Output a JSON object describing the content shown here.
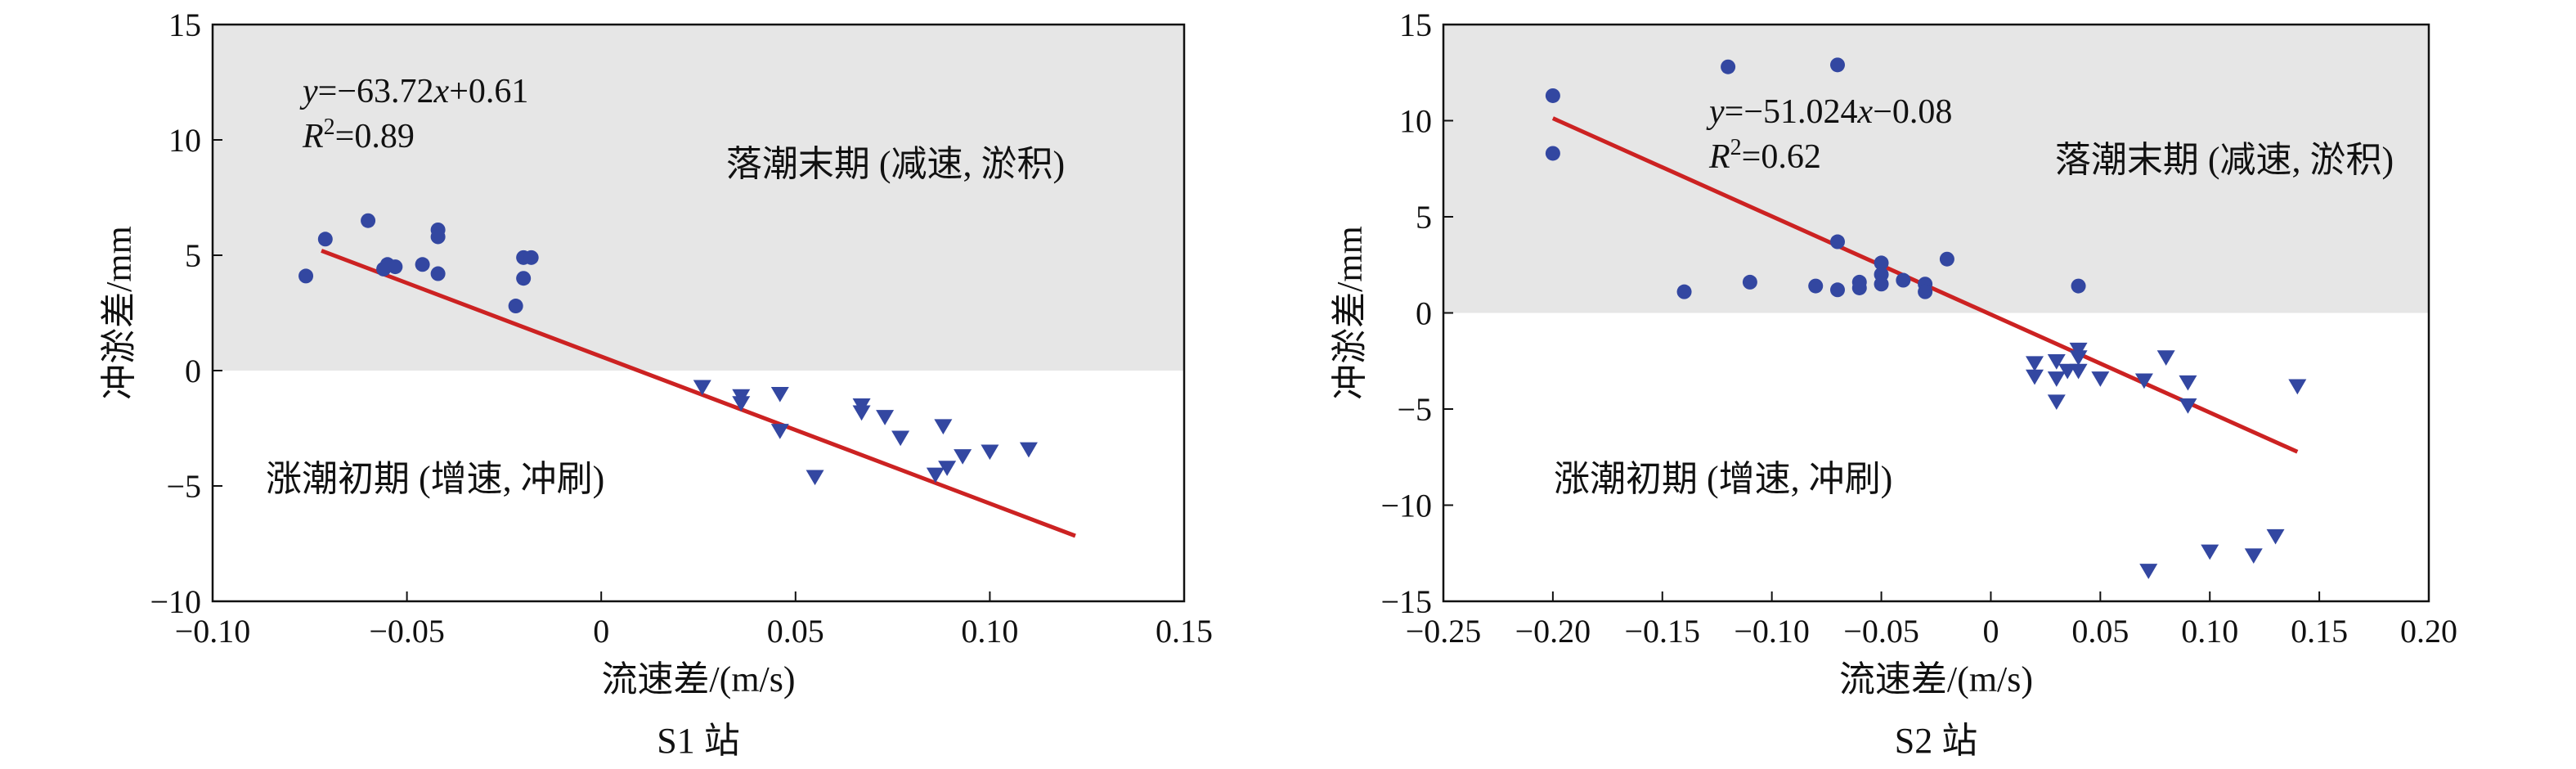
{
  "chart_data": [
    {
      "type": "scatter",
      "station": "S1 站",
      "xlabel": "流速差/(m/s)",
      "ylabel": "冲淤差/mm",
      "xlim": [
        -0.1,
        0.15
      ],
      "ylim": [
        -10,
        15
      ],
      "xticks": [
        -0.1,
        -0.05,
        0,
        0.05,
        0.1,
        0.15
      ],
      "xtick_labels": [
        "−0.10",
        "−0.05",
        "0",
        "0.05",
        "0.10",
        "0.15"
      ],
      "yticks": [
        -10,
        -5,
        0,
        5,
        10,
        15
      ],
      "ytick_labels": [
        "−10",
        "−5",
        "0",
        "5",
        "10",
        "15"
      ],
      "shaded_region": {
        "y_from": 0,
        "y_to": 15,
        "color": "#e6e6e6"
      },
      "annotation_top": "落潮末期 (减速, 淤积)",
      "annotation_bottom": "涨潮初期 (增速, 冲刷)",
      "equation": {
        "y": "y",
        "eq_mid": "=−63.72",
        "x": "x",
        "eq_end": "+0.61",
        "r2_r": "R",
        "r2_sup": "2",
        "r2_val": "=0.89"
      },
      "fit": {
        "slope": -63.72,
        "intercept": 0.61,
        "x_range": [
          -0.072,
          0.122
        ],
        "color": "#cc2222"
      },
      "marker_color": "#3347a1",
      "circles": [
        {
          "x": -0.076,
          "y": 4.1
        },
        {
          "x": -0.071,
          "y": 5.7
        },
        {
          "x": -0.06,
          "y": 6.5
        },
        {
          "x": -0.056,
          "y": 4.4
        },
        {
          "x": -0.055,
          "y": 4.6
        },
        {
          "x": -0.053,
          "y": 4.5
        },
        {
          "x": -0.046,
          "y": 4.6
        },
        {
          "x": -0.042,
          "y": 6.1
        },
        {
          "x": -0.042,
          "y": 5.8
        },
        {
          "x": -0.042,
          "y": 4.2
        },
        {
          "x": -0.022,
          "y": 2.8
        },
        {
          "x": -0.02,
          "y": 4.0
        },
        {
          "x": -0.02,
          "y": 4.9
        },
        {
          "x": -0.018,
          "y": 4.9
        }
      ],
      "triangles": [
        {
          "x": 0.026,
          "y": -0.7
        },
        {
          "x": 0.036,
          "y": -1.1
        },
        {
          "x": 0.036,
          "y": -1.4
        },
        {
          "x": 0.046,
          "y": -1.0
        },
        {
          "x": 0.046,
          "y": -2.6
        },
        {
          "x": 0.055,
          "y": -4.6
        },
        {
          "x": 0.067,
          "y": -1.5
        },
        {
          "x": 0.067,
          "y": -1.8
        },
        {
          "x": 0.073,
          "y": -2.0
        },
        {
          "x": 0.077,
          "y": -2.9
        },
        {
          "x": 0.086,
          "y": -4.5
        },
        {
          "x": 0.088,
          "y": -2.4
        },
        {
          "x": 0.089,
          "y": -4.2
        },
        {
          "x": 0.093,
          "y": -3.7
        },
        {
          "x": 0.1,
          "y": -3.5
        },
        {
          "x": 0.11,
          "y": -3.4
        }
      ]
    },
    {
      "type": "scatter",
      "station": "S2 站",
      "xlabel": "流速差/(m/s)",
      "ylabel": "冲淤差/mm",
      "xlim": [
        -0.25,
        0.2
      ],
      "ylim": [
        -15,
        15
      ],
      "xticks": [
        -0.25,
        -0.2,
        -0.15,
        -0.1,
        -0.05,
        0,
        0.05,
        0.1,
        0.15,
        0.2
      ],
      "xtick_labels": [
        "−0.25",
        "−0.20",
        "−0.15",
        "−0.10",
        "−0.05",
        "0",
        "0.05",
        "0.10",
        "0.15",
        "0.20"
      ],
      "yticks": [
        -15,
        -10,
        -5,
        0,
        5,
        10,
        15
      ],
      "ytick_labels": [
        "−15",
        "−10",
        "−5",
        "0",
        "5",
        "10",
        "15"
      ],
      "shaded_region": {
        "y_from": 0,
        "y_to": 15,
        "color": "#e6e6e6"
      },
      "annotation_top": "落潮末期 (减速, 淤积)",
      "annotation_bottom": "涨潮初期 (增速, 冲刷)",
      "equation": {
        "y": "y",
        "eq_mid": "=−51.024",
        "x": "x",
        "eq_end": "−0.08",
        "r2_r": "R",
        "r2_sup": "2",
        "r2_val": "=0.62"
      },
      "fit": {
        "slope": -51.024,
        "intercept": -0.08,
        "x_range": [
          -0.2,
          0.14
        ],
        "color": "#cc2222"
      },
      "marker_color": "#3347a1",
      "circles": [
        {
          "x": -0.2,
          "y": 11.3
        },
        {
          "x": -0.2,
          "y": 8.3
        },
        {
          "x": -0.14,
          "y": 1.1
        },
        {
          "x": -0.12,
          "y": 12.8
        },
        {
          "x": -0.11,
          "y": 1.6
        },
        {
          "x": -0.08,
          "y": 1.4
        },
        {
          "x": -0.07,
          "y": 12.9
        },
        {
          "x": -0.07,
          "y": 3.7
        },
        {
          "x": -0.07,
          "y": 1.2
        },
        {
          "x": -0.06,
          "y": 1.6
        },
        {
          "x": -0.06,
          "y": 1.3
        },
        {
          "x": -0.05,
          "y": 2.6
        },
        {
          "x": -0.05,
          "y": 2.0
        },
        {
          "x": -0.05,
          "y": 1.5
        },
        {
          "x": -0.04,
          "y": 1.7
        },
        {
          "x": -0.03,
          "y": 1.5
        },
        {
          "x": -0.03,
          "y": 1.1
        },
        {
          "x": -0.02,
          "y": 2.8
        },
        {
          "x": 0.04,
          "y": 1.4
        }
      ],
      "triangles": [
        {
          "x": 0.02,
          "y": -2.6
        },
        {
          "x": 0.02,
          "y": -3.3
        },
        {
          "x": 0.03,
          "y": -2.5
        },
        {
          "x": 0.03,
          "y": -3.4
        },
        {
          "x": 0.03,
          "y": -4.6
        },
        {
          "x": 0.035,
          "y": -3.0
        },
        {
          "x": 0.04,
          "y": -1.9
        },
        {
          "x": 0.04,
          "y": -2.3
        },
        {
          "x": 0.04,
          "y": -3.0
        },
        {
          "x": 0.05,
          "y": -3.4
        },
        {
          "x": 0.07,
          "y": -3.5
        },
        {
          "x": 0.072,
          "y": -13.4
        },
        {
          "x": 0.08,
          "y": -2.3
        },
        {
          "x": 0.09,
          "y": -3.6
        },
        {
          "x": 0.09,
          "y": -4.8
        },
        {
          "x": 0.1,
          "y": -12.4
        },
        {
          "x": 0.12,
          "y": -12.6
        },
        {
          "x": 0.13,
          "y": -11.6
        },
        {
          "x": 0.14,
          "y": -3.8
        }
      ]
    }
  ]
}
